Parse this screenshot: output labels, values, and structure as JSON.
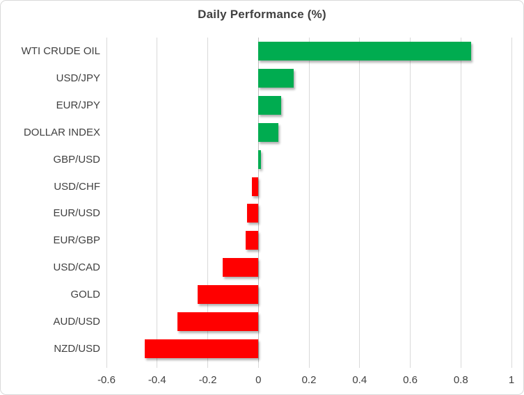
{
  "chart_data": {
    "type": "bar",
    "orientation": "horizontal",
    "title": "Daily Performance (%)",
    "xlabel": "",
    "ylabel": "",
    "categories": [
      "WTI CRUDE OIL",
      "USD/JPY",
      "EUR/JPY",
      "DOLLAR INDEX",
      "GBP/USD",
      "USD/CHF",
      "EUR/USD",
      "EUR/GBP",
      "USD/CAD",
      "GOLD",
      "AUD/USD",
      "NZD/USD"
    ],
    "values": [
      0.84,
      0.14,
      0.09,
      0.08,
      0.01,
      -0.025,
      -0.045,
      -0.05,
      -0.14,
      -0.24,
      -0.32,
      -0.45
    ],
    "xlim": [
      -0.6,
      1.0
    ],
    "x_ticks": [
      -0.6,
      -0.4,
      -0.2,
      0,
      0.2,
      0.4,
      0.6,
      0.8,
      1
    ],
    "x_tick_labels": [
      "-0.6",
      "-0.4",
      "-0.2",
      "0",
      "0.2",
      "0.4",
      "0.6",
      "0.8",
      "1"
    ],
    "grid": true,
    "legend": false,
    "positive_color": "#00AC50",
    "negative_color": "#FF0000",
    "gridline_color": "#D9D9D9",
    "zero_line_color": "#BFBFBF",
    "text_color": "#404040"
  }
}
